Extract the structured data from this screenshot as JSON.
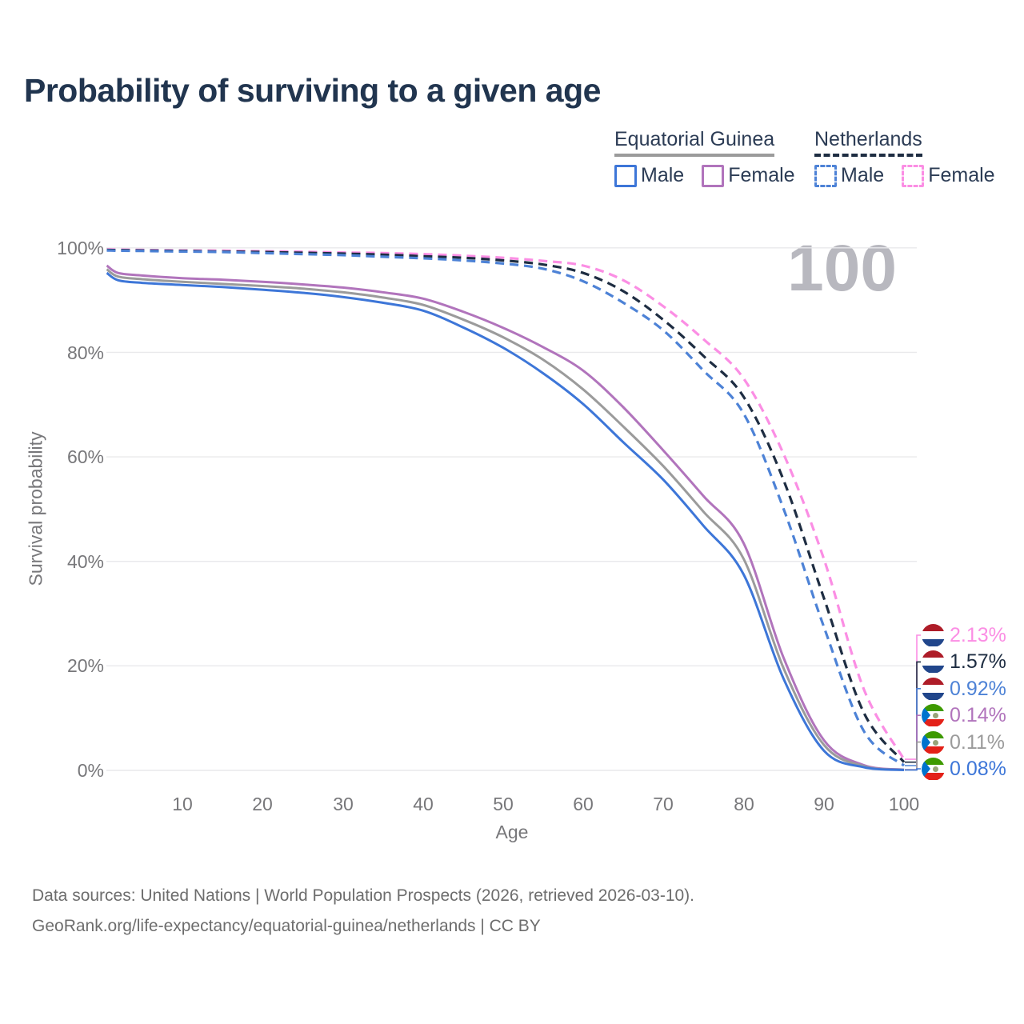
{
  "title": "Probability of surviving to a given age",
  "watermark_age": "100",
  "legend": {
    "groups": [
      {
        "label": "Equatorial Guinea",
        "style": "solid",
        "items": [
          {
            "label": "Male",
            "color": "#3d76d8"
          },
          {
            "label": "Female",
            "color": "#b174bc"
          }
        ]
      },
      {
        "label": "Netherlands",
        "style": "dashed",
        "items": [
          {
            "label": "Male",
            "color": "#4d82d6"
          },
          {
            "label": "Female",
            "color": "#fb8ee4"
          }
        ]
      }
    ]
  },
  "axes": {
    "y": {
      "label": "Survival probability",
      "ticks": [
        "100%",
        "80%",
        "60%",
        "40%",
        "20%",
        "0%"
      ]
    },
    "x": {
      "label": "Age",
      "ticks": [
        "10",
        "20",
        "30",
        "40",
        "50",
        "60",
        "70",
        "80",
        "90",
        "100"
      ]
    }
  },
  "chart_data": {
    "type": "line",
    "title": "Probability of surviving to a given age",
    "xlabel": "Age",
    "ylabel": "Survival probability",
    "xlim": [
      0,
      101.5
    ],
    "ylim_pct": [
      0,
      100
    ],
    "y_ticks_pct": [
      0,
      20,
      40,
      60,
      80,
      100
    ],
    "x_ticks": [
      10,
      20,
      30,
      40,
      50,
      60,
      70,
      80,
      90,
      100
    ],
    "grid": "horizontal",
    "legend_position": "top-right",
    "age_counter": "100",
    "ages": [
      0.6,
      2,
      5,
      10,
      15,
      20,
      25,
      30,
      35,
      40,
      45,
      50,
      55,
      60,
      65,
      70,
      75,
      80,
      85,
      90,
      95,
      100
    ],
    "series": [
      {
        "name": "Netherlands Female",
        "group": "Netherlands",
        "sex": "Female",
        "style": "dashed",
        "color": "#fb8ee4",
        "end_label": "2.13%",
        "values": [
          99.7,
          99.65,
          99.6,
          99.5,
          99.45,
          99.35,
          99.25,
          99.1,
          99.0,
          98.8,
          98.5,
          98.1,
          97.5,
          96.6,
          93.8,
          88.8,
          82.5,
          75.0,
          60.5,
          40.5,
          15.5,
          2.13
        ]
      },
      {
        "name": "Netherlands Both sexes",
        "group": "Netherlands",
        "sex": "Both",
        "style": "dashed",
        "color": "#1e2d42",
        "end_label": "1.57%",
        "values": [
          99.6,
          99.55,
          99.5,
          99.4,
          99.3,
          99.2,
          99.05,
          98.9,
          98.7,
          98.4,
          98.1,
          97.6,
          96.8,
          95.2,
          91.7,
          86.2,
          79.3,
          71.5,
          55.5,
          33.0,
          11.0,
          1.57
        ]
      },
      {
        "name": "Netherlands Male",
        "group": "Netherlands",
        "sex": "Male",
        "style": "dashed",
        "color": "#4d82d6",
        "end_label": "0.92%",
        "values": [
          99.5,
          99.45,
          99.4,
          99.3,
          99.2,
          99.0,
          98.8,
          98.6,
          98.3,
          98.0,
          97.6,
          97.0,
          96.0,
          93.6,
          89.5,
          84.2,
          76.5,
          68.3,
          50.0,
          27.5,
          7.5,
          0.92
        ]
      },
      {
        "name": "Equatorial Guinea Female",
        "group": "Equatorial Guinea",
        "sex": "Female",
        "style": "solid",
        "color": "#b174bc",
        "end_label": "0.14%",
        "values": [
          96.6,
          95.2,
          94.7,
          94.2,
          93.9,
          93.5,
          93.0,
          92.4,
          91.5,
          90.3,
          87.8,
          84.7,
          81.0,
          76.5,
          69.5,
          61.2,
          52.5,
          43.5,
          21.5,
          5.8,
          1.0,
          0.14
        ]
      },
      {
        "name": "Equatorial Guinea Both sexes",
        "group": "Equatorial Guinea",
        "sex": "Both",
        "style": "solid",
        "color": "#9b9b9b",
        "end_label": "0.11%",
        "values": [
          95.9,
          94.5,
          94.0,
          93.5,
          93.1,
          92.7,
          92.2,
          91.5,
          90.5,
          89.1,
          86.3,
          82.9,
          78.6,
          72.9,
          65.8,
          58.2,
          49.5,
          40.5,
          19.5,
          4.9,
          0.8,
          0.11
        ]
      },
      {
        "name": "Equatorial Guinea Male",
        "group": "Equatorial Guinea",
        "sex": "Male",
        "style": "solid",
        "color": "#3d76d8",
        "end_label": "0.08%",
        "values": [
          95.2,
          93.8,
          93.3,
          92.9,
          92.5,
          92.0,
          91.4,
          90.6,
          89.5,
          88.0,
          84.8,
          80.9,
          76.0,
          70.1,
          62.8,
          55.6,
          46.8,
          37.5,
          17.5,
          3.8,
          0.6,
          0.08
        ]
      }
    ]
  },
  "footer": {
    "line1": "Data sources: United Nations | World Population Prospects (2026, retrieved 2026-03-10).",
    "line2": "GeoRank.org/life-expectancy/equatorial-guinea/netherlands | CC BY"
  }
}
